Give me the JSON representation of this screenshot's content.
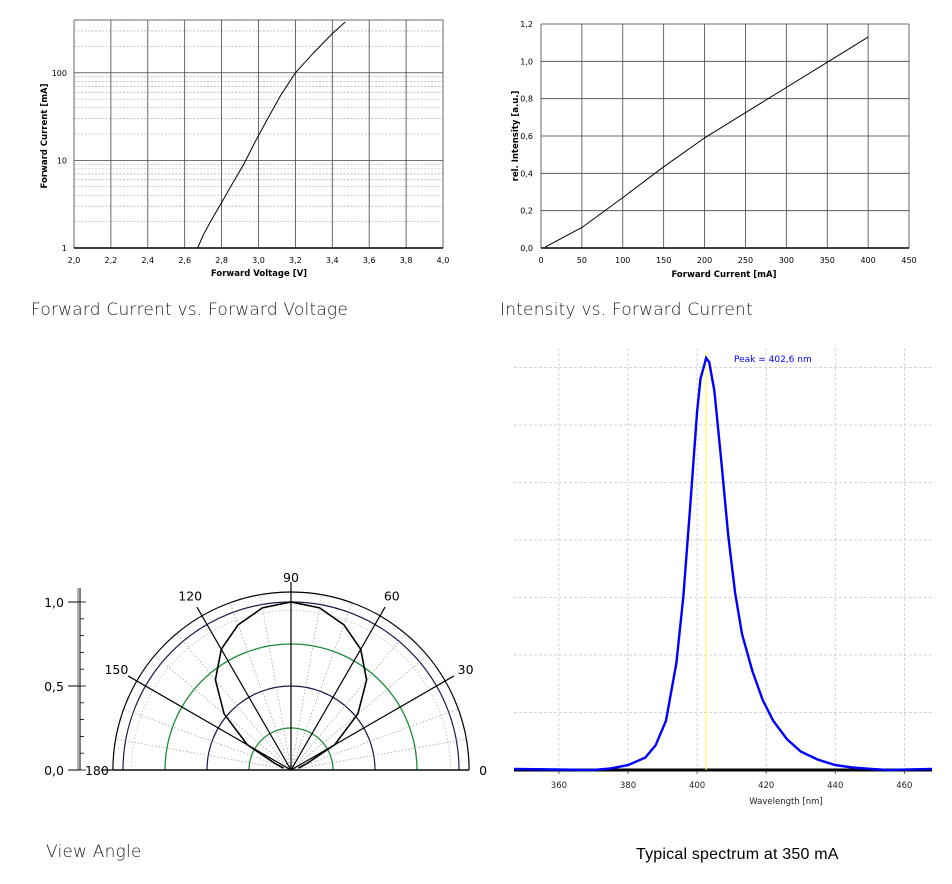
{
  "captions": {
    "fv": "Forward Current vs. Forward Voltage",
    "iv": "Intensity vs. Forward Current",
    "view": "View Angle",
    "spectrum": "Typical spectrum at 350 mA"
  },
  "chart_data": [
    {
      "type": "line",
      "xlabel": "Forward Voltage [V]",
      "ylabel": "Forward Current [mA]",
      "xlim": [
        2.0,
        4.0
      ],
      "ylim": [
        1,
        400
      ],
      "yscale": "log",
      "xticks": [
        "2,0",
        "2,2",
        "2,4",
        "2,6",
        "2,8",
        "3,0",
        "3,2",
        "3,4",
        "3,6",
        "3,8",
        "4,0"
      ],
      "yticks": [
        "1",
        "10",
        "100"
      ],
      "grid": true,
      "series": [
        {
          "x": [
            2.67,
            2.7,
            2.74,
            2.8,
            2.86,
            2.92,
            2.98,
            3.05,
            3.12,
            3.2,
            3.3,
            3.4,
            3.47
          ],
          "y": [
            1.0,
            1.4,
            2.0,
            3.3,
            5.5,
            9.0,
            16,
            30,
            55,
            100,
            170,
            280,
            380
          ]
        }
      ]
    },
    {
      "type": "line",
      "xlabel": "Forward Current [mA]",
      "ylabel": "rel. Intensity [a.u.]",
      "xlim": [
        0,
        450
      ],
      "ylim": [
        0.0,
        1.2
      ],
      "xticks": [
        "0",
        "50",
        "100",
        "150",
        "200",
        "250",
        "300",
        "350",
        "400",
        "450"
      ],
      "yticks": [
        "0,0",
        "0,2",
        "0,4",
        "0,6",
        "0,8",
        "1,0",
        "1,2"
      ],
      "grid": true,
      "series": [
        {
          "x": [
            5,
            50,
            100,
            150,
            200,
            250,
            300,
            350,
            400
          ],
          "y": [
            0.005,
            0.11,
            0.27,
            0.435,
            0.59,
            0.725,
            0.86,
            0.995,
            1.13
          ]
        }
      ]
    },
    {
      "type": "polar",
      "angle_labels": [
        "0",
        "30",
        "60",
        "90",
        "120",
        "150",
        "180"
      ],
      "radial_ticks": [
        "0,0",
        "0,5",
        "1,0"
      ],
      "series": [
        {
          "angles": [
            22,
            30,
            40,
            50,
            60,
            70,
            80,
            90,
            100,
            110,
            120,
            130,
            140,
            150,
            158
          ],
          "r": [
            0.1,
            0.3,
            0.52,
            0.7,
            0.83,
            0.92,
            0.98,
            1.0,
            0.98,
            0.92,
            0.83,
            0.7,
            0.52,
            0.3,
            0.1
          ]
        }
      ]
    },
    {
      "type": "line",
      "xlabel": "Wavelength [nm]",
      "xlim": [
        347,
        468
      ],
      "ylim": [
        0,
        1.0
      ],
      "xticks": [
        "360",
        "380",
        "400",
        "420",
        "440",
        "460"
      ],
      "annotation": "Peak = 402,6 nm",
      "peak": 402.6,
      "colors": {
        "line": "#0000ff",
        "marker": "#ffff66"
      },
      "series": [
        {
          "x": [
            370,
            375,
            380,
            385,
            388,
            391,
            394,
            396,
            398,
            400,
            401,
            402,
            402.6,
            403.5,
            405,
            407,
            409,
            411,
            413,
            416,
            419,
            422,
            426,
            430,
            435,
            440,
            445,
            450,
            455
          ],
          "y": [
            0.0,
            0.004,
            0.012,
            0.03,
            0.06,
            0.12,
            0.26,
            0.42,
            0.64,
            0.87,
            0.95,
            0.98,
            1.0,
            0.99,
            0.92,
            0.75,
            0.57,
            0.43,
            0.33,
            0.24,
            0.17,
            0.12,
            0.075,
            0.045,
            0.025,
            0.012,
            0.006,
            0.003,
            0.0
          ]
        }
      ]
    }
  ]
}
